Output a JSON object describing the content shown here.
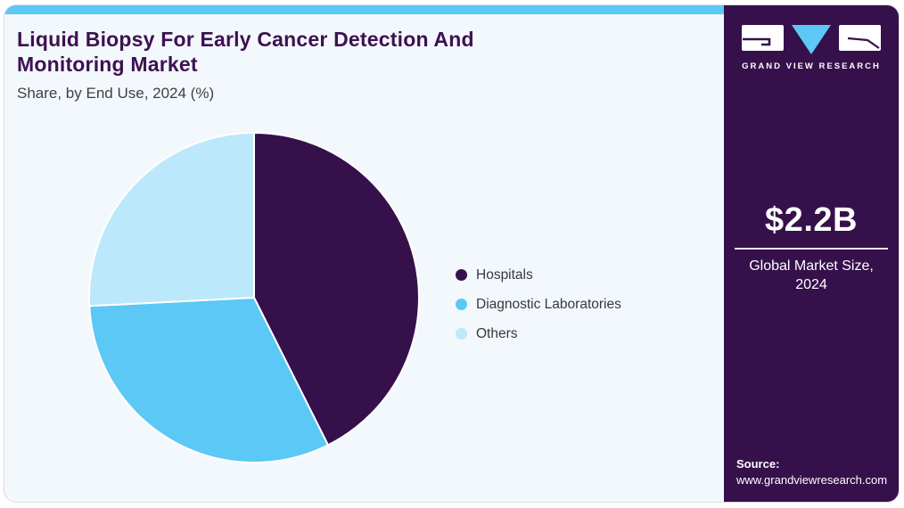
{
  "header": {
    "title": "Liquid Biopsy For Early Cancer Detection And Monitoring Market",
    "subtitle": "Share, by End Use, 2024 (%)"
  },
  "chart_data": {
    "type": "pie",
    "categories": [
      "Hospitals",
      "Diagnostic Laboratories",
      "Others"
    ],
    "values": [
      42.6,
      31.6,
      25.8
    ],
    "colors": [
      "#36104b",
      "#5bc8f5",
      "#bce8fb"
    ],
    "title": "Liquid Biopsy For Early Cancer Detection And Monitoring Market",
    "subtitle": "Share, by End Use, 2024 (%)",
    "unit": "%",
    "start_angle_deg": 0,
    "direction": "clockwise",
    "legend_position": "right",
    "slice_stroke": "#ffffff"
  },
  "sidebar": {
    "brand": "GRAND VIEW RESEARCH",
    "market_size": {
      "value": "$2.2B",
      "label": "Global Market Size,\n2024"
    },
    "source": {
      "label": "Source:",
      "url": "www.grandviewresearch.com"
    }
  },
  "colors": {
    "accent_blue": "#5bc8f5",
    "brand_purple": "#36104b",
    "card_background": "#f3f8fc",
    "card_border": "#d8dde3",
    "title_text": "#3d1152",
    "body_text": "#3f3f44"
  }
}
